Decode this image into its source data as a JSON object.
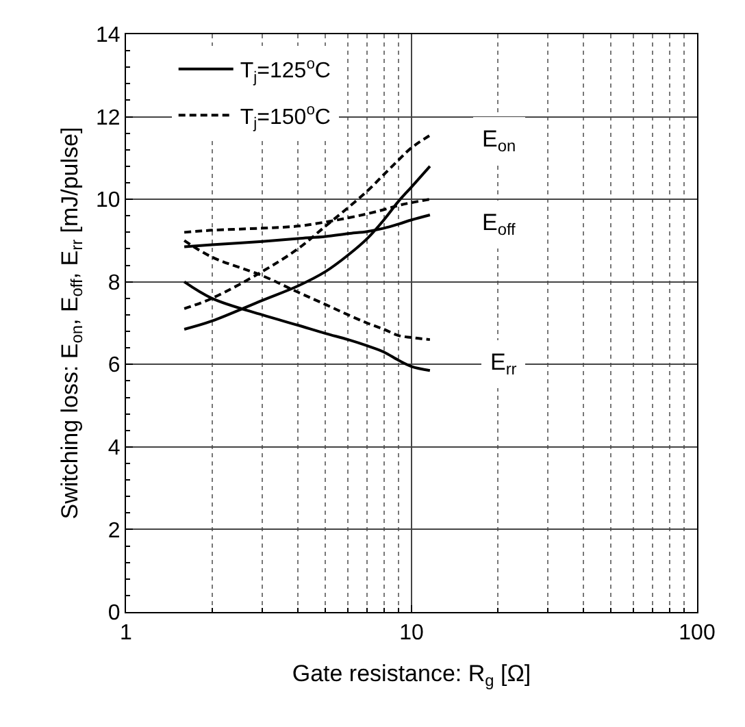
{
  "chart_data": {
    "type": "line",
    "xlabel": "Gate resistance: R$_{g}$ [Ω]",
    "ylabel": "Switching loss: E$_{on}$, E$_{off}$, E$_{rr}$ [mJ/pulse]",
    "x": [
      1.6,
      2,
      3,
      4,
      5,
      6,
      7,
      8,
      9,
      10,
      11.6
    ],
    "series": [
      {
        "name": "T$_{j}$=125$^{o}$C",
        "color": "#000000",
        "line_style": "solid",
        "values": [
          6.85,
          7.05,
          7.55,
          7.9,
          8.25,
          8.65,
          9.05,
          9.5,
          9.95,
          10.3,
          10.8
        ]
      },
      {
        "name": "T$_{j}$=150$^{o}$C",
        "color": "#000000",
        "line_style": "dashed",
        "values": [
          7.35,
          7.6,
          8.25,
          8.8,
          9.35,
          9.8,
          10.2,
          10.6,
          10.95,
          11.25,
          11.55
        ]
      },
      {
        "color": "#000000",
        "line_style": "solid",
        "values": [
          8.85,
          8.9,
          8.98,
          9.05,
          9.1,
          9.17,
          9.22,
          9.3,
          9.4,
          9.5,
          9.62
        ]
      },
      {
        "color": "#000000",
        "line_style": "dashed",
        "values": [
          9.2,
          9.25,
          9.3,
          9.35,
          9.45,
          9.55,
          9.65,
          9.75,
          9.85,
          9.92,
          10.0
        ]
      },
      {
        "color": "#000000",
        "line_style": "solid",
        "values": [
          8.0,
          7.6,
          7.2,
          6.95,
          6.75,
          6.6,
          6.45,
          6.3,
          6.1,
          5.95,
          5.85
        ]
      },
      {
        "color": "#000000",
        "line_style": "dashed",
        "values": [
          9.0,
          8.6,
          8.15,
          7.75,
          7.45,
          7.2,
          7.0,
          6.85,
          6.7,
          6.65,
          6.6
        ]
      }
    ],
    "annotations": [
      "E$_{on}$",
      "E$_{off}$",
      "E$_{rr}$"
    ],
    "log": "x",
    "xlim": [
      1,
      100
    ],
    "xticks": [
      1,
      10,
      100
    ],
    "ylim": [
      0,
      14
    ],
    "yticks": [
      0,
      2,
      4,
      6,
      8,
      10,
      12,
      14
    ],
    "grid": true,
    "legend": "top left",
    "marker": "none"
  }
}
